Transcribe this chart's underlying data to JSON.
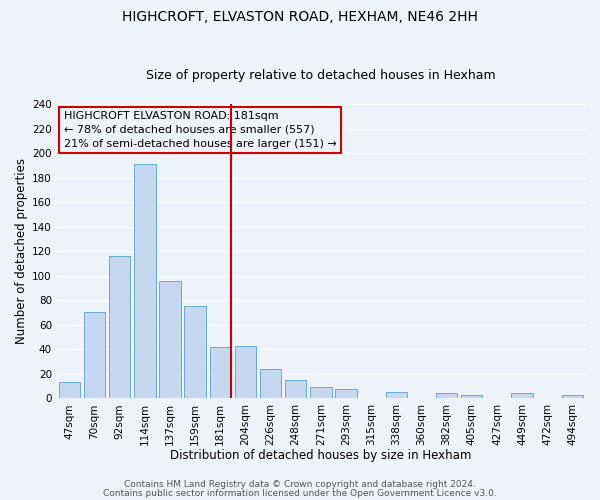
{
  "title": "HIGHCROFT, ELVASTON ROAD, HEXHAM, NE46 2HH",
  "subtitle": "Size of property relative to detached houses in Hexham",
  "xlabel": "Distribution of detached houses by size in Hexham",
  "ylabel": "Number of detached properties",
  "bar_labels": [
    "47sqm",
    "70sqm",
    "92sqm",
    "114sqm",
    "137sqm",
    "159sqm",
    "181sqm",
    "204sqm",
    "226sqm",
    "248sqm",
    "271sqm",
    "293sqm",
    "315sqm",
    "338sqm",
    "360sqm",
    "382sqm",
    "405sqm",
    "427sqm",
    "449sqm",
    "472sqm",
    "494sqm"
  ],
  "bar_values": [
    13,
    70,
    116,
    191,
    96,
    75,
    42,
    43,
    24,
    15,
    9,
    8,
    0,
    5,
    0,
    4,
    3,
    0,
    4,
    0,
    3
  ],
  "highlight_index": 6,
  "bar_color": "#c5d8f0",
  "bar_edge_color": "#6aaad4",
  "highlight_line_color": "#cc0000",
  "annotation_line1": "HIGHCROFT ELVASTON ROAD: 181sqm",
  "annotation_line2": "← 78% of detached houses are smaller (557)",
  "annotation_line3": "21% of semi-detached houses are larger (151) →",
  "annotation_box_edge": "#cc0000",
  "ylim": [
    0,
    240
  ],
  "yticks": [
    0,
    20,
    40,
    60,
    80,
    100,
    120,
    140,
    160,
    180,
    200,
    220,
    240
  ],
  "footer1": "Contains HM Land Registry data © Crown copyright and database right 2024.",
  "footer2": "Contains public sector information licensed under the Open Government Licence v3.0.",
  "background_color": "#eef2f9",
  "grid_color": "#ffffff",
  "title_fontsize": 10,
  "subtitle_fontsize": 9,
  "axis_label_fontsize": 8.5,
  "tick_fontsize": 7.5,
  "annotation_fontsize": 8,
  "footer_fontsize": 6.5
}
